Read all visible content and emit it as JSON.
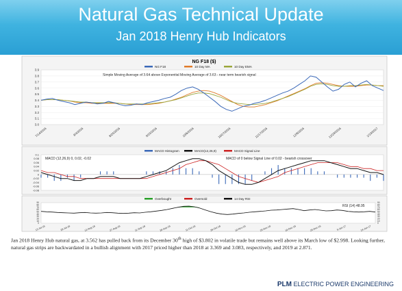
{
  "slide": {
    "title": "Natural Gas Technical Update",
    "subtitle": "Jan 2018 Henry Hub Indicators",
    "description_1": "Jan 2018 Henry Hub natural gas, at 3.562 has pulled back from its December 30",
    "description_sup": "th",
    "description_2": " high of $3.802 in volatile trade but remains well above its March low of $2.998.  Looking further, natural gas strips are backwardated in a bullish alignment with 2017 priced higher than 2018 at 3.369 and 3.083, respectively, and 2019 at 2.871.",
    "footer_brand": "PLM",
    "footer_tag": "ELECTRIC POWER ENGINEERING"
  },
  "chart_data": [
    {
      "type": "line",
      "title": "NG F18 ($)",
      "annotation": "Simple Moving Average of 3.64 above Exponential Moving Average of 3.63 - near term bearish signal",
      "legend": [
        "NG F18",
        "10 Day MA",
        "10 Day EMA"
      ],
      "ylim": [
        3.0,
        3.9
      ],
      "yticks": [
        "3.0",
        "3.1",
        "3.2",
        "3.3",
        "3.4",
        "3.5",
        "3.6",
        "3.7",
        "3.8",
        "3.9"
      ],
      "xticks": [
        "7/14/2016",
        "8/4/2016",
        "8/25/2016",
        "9/15/2016",
        "10/6/2016",
        "10/27/2016",
        "11/17/2016",
        "12/8/2016",
        "12/29/2016",
        "1/19/2017"
      ],
      "colors": {
        "price": "#3a68b8",
        "sma": "#e07b2a",
        "ema": "#9aa63a"
      },
      "price": [
        3.4,
        3.42,
        3.43,
        3.4,
        3.38,
        3.36,
        3.33,
        3.35,
        3.37,
        3.36,
        3.34,
        3.35,
        3.38,
        3.36,
        3.33,
        3.31,
        3.32,
        3.34,
        3.33,
        3.36,
        3.38,
        3.4,
        3.43,
        3.45,
        3.5,
        3.56,
        3.6,
        3.62,
        3.58,
        3.52,
        3.45,
        3.38,
        3.3,
        3.25,
        3.22,
        3.26,
        3.3,
        3.32,
        3.35,
        3.37,
        3.4,
        3.44,
        3.48,
        3.52,
        3.55,
        3.6,
        3.66,
        3.72,
        3.8,
        3.78,
        3.7,
        3.62,
        3.55,
        3.58,
        3.66,
        3.7,
        3.62,
        3.68,
        3.72,
        3.64,
        3.6,
        3.56
      ],
      "sma": [
        3.4,
        3.41,
        3.41,
        3.41,
        3.4,
        3.39,
        3.37,
        3.36,
        3.36,
        3.35,
        3.35,
        3.35,
        3.35,
        3.35,
        3.35,
        3.34,
        3.33,
        3.33,
        3.33,
        3.33,
        3.34,
        3.35,
        3.37,
        3.39,
        3.42,
        3.45,
        3.49,
        3.53,
        3.55,
        3.56,
        3.55,
        3.52,
        3.48,
        3.43,
        3.38,
        3.33,
        3.3,
        3.29,
        3.29,
        3.31,
        3.33,
        3.36,
        3.39,
        3.43,
        3.47,
        3.51,
        3.55,
        3.59,
        3.64,
        3.68,
        3.69,
        3.68,
        3.66,
        3.64,
        3.63,
        3.63,
        3.63,
        3.64,
        3.65,
        3.65,
        3.64,
        3.64
      ],
      "ema": [
        3.4,
        3.41,
        3.41,
        3.41,
        3.4,
        3.39,
        3.38,
        3.37,
        3.37,
        3.36,
        3.36,
        3.36,
        3.36,
        3.36,
        3.35,
        3.34,
        3.34,
        3.34,
        3.34,
        3.34,
        3.35,
        3.36,
        3.37,
        3.39,
        3.41,
        3.44,
        3.47,
        3.5,
        3.52,
        3.52,
        3.51,
        3.48,
        3.45,
        3.41,
        3.37,
        3.35,
        3.34,
        3.33,
        3.33,
        3.34,
        3.35,
        3.37,
        3.4,
        3.43,
        3.46,
        3.5,
        3.54,
        3.58,
        3.63,
        3.66,
        3.67,
        3.66,
        3.64,
        3.63,
        3.63,
        3.64,
        3.64,
        3.65,
        3.66,
        3.65,
        3.64,
        3.63
      ]
    },
    {
      "type": "line",
      "title": "MACD of 0 below Signal Line of 0.02 - bearish crossover",
      "readout": "MACD (12,26,9) 0, 0.02, -0.02",
      "legend": [
        "MACD Histogram",
        "MACD(12,26,9)",
        "MACD Signal Line"
      ],
      "ylim": [
        -0.08,
        0.1
      ],
      "yticks": [
        "0.1",
        "0.08",
        "0.06",
        "0.04",
        "0.02",
        "0",
        "-0.02",
        "-0.04",
        "-0.06",
        "-0.08"
      ],
      "colors": {
        "hist": "#3a68b8",
        "macd": "#111111",
        "signal": "#cc2222"
      },
      "macd": [
        0.01,
        0.0,
        -0.01,
        -0.02,
        -0.02,
        -0.03,
        -0.03,
        -0.02,
        -0.02,
        -0.01,
        -0.01,
        -0.01,
        -0.02,
        -0.02,
        -0.02,
        -0.02,
        -0.01,
        0.0,
        0.01,
        0.02,
        0.04,
        0.06,
        0.07,
        0.08,
        0.08,
        0.07,
        0.05,
        0.02,
        0.0,
        -0.02,
        -0.04,
        -0.05,
        -0.05,
        -0.04,
        -0.02,
        0.0,
        0.02,
        0.03,
        0.04,
        0.05,
        0.06,
        0.07,
        0.07,
        0.07,
        0.06,
        0.05,
        0.04,
        0.03,
        0.03,
        0.02,
        0.01,
        0.01,
        0.0
      ],
      "signal": [
        0.02,
        0.01,
        0.01,
        0.0,
        -0.01,
        -0.01,
        -0.02,
        -0.02,
        -0.02,
        -0.02,
        -0.02,
        -0.02,
        -0.02,
        -0.02,
        -0.02,
        -0.02,
        -0.02,
        -0.01,
        0.0,
        0.01,
        0.02,
        0.03,
        0.05,
        0.06,
        0.07,
        0.07,
        0.06,
        0.05,
        0.03,
        0.01,
        -0.01,
        -0.02,
        -0.03,
        -0.04,
        -0.03,
        -0.02,
        -0.01,
        0.01,
        0.02,
        0.03,
        0.04,
        0.05,
        0.06,
        0.06,
        0.06,
        0.06,
        0.05,
        0.04,
        0.04,
        0.03,
        0.03,
        0.02,
        0.02
      ]
    },
    {
      "type": "line",
      "title": "RSI (14) 48.95",
      "legend": [
        "Overbought",
        "Oversold",
        "14 Day RSI"
      ],
      "ylim": [
        0,
        90
      ],
      "yticks": [
        "90",
        "80",
        "70",
        "60",
        "50",
        "40",
        "30",
        "20",
        "10",
        "0"
      ],
      "xticks": [
        "13-Jul-16",
        "28-Jul-16",
        "12-Aug-16",
        "27-Aug-16",
        "11-Sep-16",
        "26-Sep-16",
        "11-Oct-16",
        "26-Oct-16",
        "10-Nov-16",
        "25-Nov-16",
        "10-Dec-16",
        "25-Dec-16",
        "9-Jan-17",
        "24-Jan-17"
      ],
      "colors": {
        "rsi": "#111111",
        "overbought": "#2aa02a"
      },
      "rsi": [
        52,
        50,
        49,
        47,
        46,
        45,
        44,
        46,
        47,
        45,
        44,
        45,
        47,
        46,
        44,
        43,
        44,
        46,
        45,
        48,
        50,
        53,
        56,
        60,
        65,
        70,
        74,
        75,
        72,
        66,
        58,
        50,
        44,
        40,
        38,
        40,
        43,
        45,
        48,
        50,
        52,
        54,
        57,
        58,
        60,
        62,
        64,
        60,
        55,
        58,
        60,
        57,
        54,
        55,
        58,
        56,
        52,
        50,
        49,
        50,
        52,
        49
      ]
    }
  ]
}
